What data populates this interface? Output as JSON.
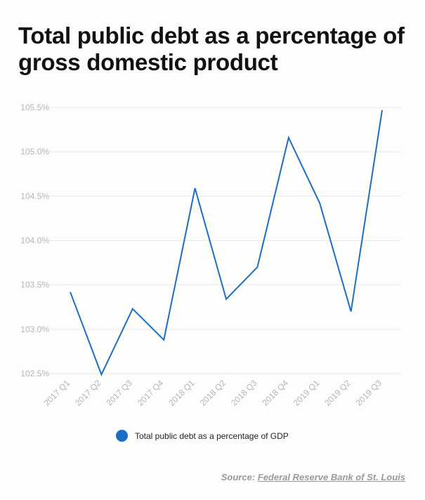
{
  "colors": {
    "line": "#1a6fc4",
    "legend": "#1a6fc4",
    "grid": "#e9e9e9",
    "tick": "#b5b5b5"
  },
  "chart_data": {
    "type": "line",
    "title": "Total public debt as a percentage of gross domestic product",
    "xlabel": "",
    "ylabel": "",
    "categories": [
      "2017 Q1",
      "2017 Q2",
      "2017 Q3",
      "2017 Q4",
      "2018 Q1",
      "2018 Q2",
      "2018 Q3",
      "2018 Q4",
      "2019 Q1",
      "2019 Q2",
      "2019 Q3"
    ],
    "series": [
      {
        "name": "Total public debt as a percentage of GDP",
        "values": [
          103.42,
          102.49,
          103.23,
          102.88,
          104.59,
          103.34,
          103.7,
          105.16,
          104.42,
          103.2,
          105.47
        ]
      }
    ],
    "ylim": [
      102.5,
      105.5
    ],
    "yticks": [
      102.5,
      103.0,
      103.5,
      104.0,
      104.5,
      105.0,
      105.5
    ],
    "ytick_labels": [
      "102.5%",
      "103.0%",
      "103.5%",
      "104.0%",
      "104.5%",
      "105.0%",
      "105.5%"
    ],
    "grid": true,
    "legend_position": "bottom-center"
  },
  "source": {
    "prefix": "Source: ",
    "name": "Federal Reserve Bank of St. Louis"
  }
}
